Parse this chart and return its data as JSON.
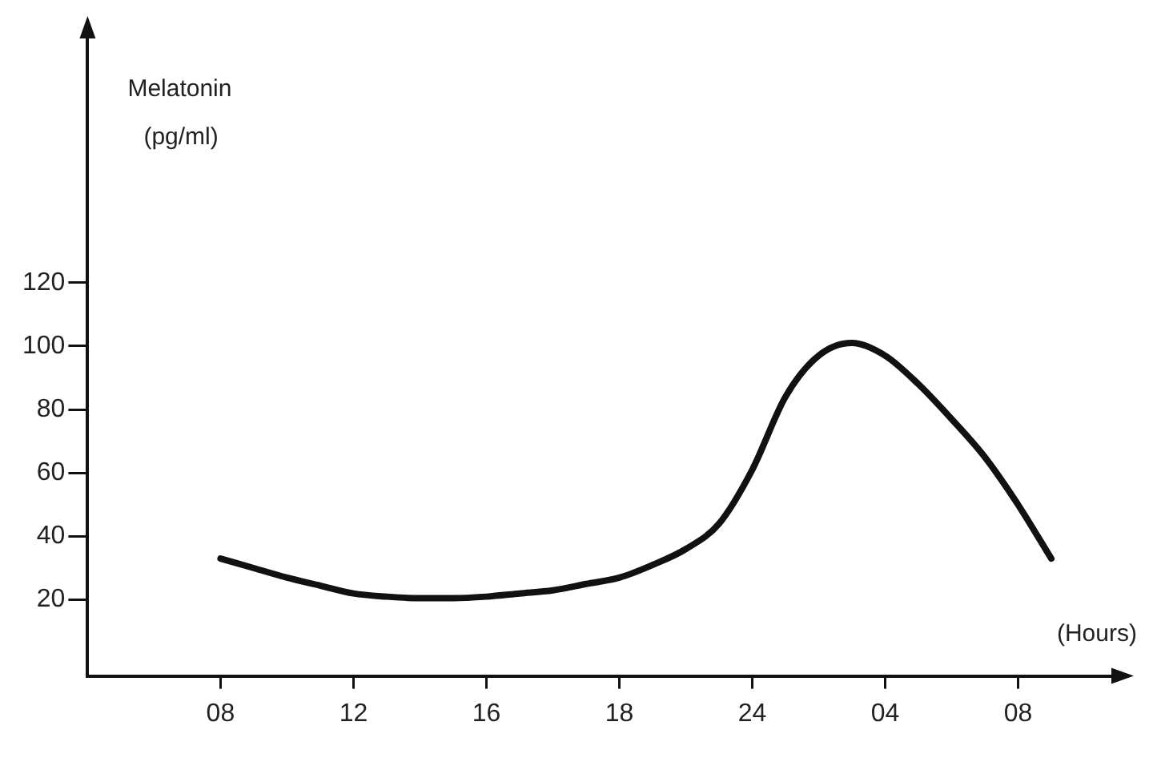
{
  "chart_data": {
    "type": "line",
    "xlabel": "(Hours)",
    "ylabel": "Melatonin (pg/ml)",
    "categories": [
      null,
      null,
      null,
      null,
      "08",
      null,
      null,
      null,
      "12",
      null,
      null,
      null,
      "16",
      null,
      null,
      null,
      "18",
      null,
      null,
      null,
      "24",
      null,
      null,
      null,
      "04",
      null,
      null,
      null,
      "08",
      null,
      null,
      null
    ],
    "series": [
      {
        "color": "#111111",
        "values": [
          null,
          null,
          null,
          null,
          33,
          30,
          27,
          24.5,
          22,
          21,
          20.5,
          20.5,
          21,
          22,
          23,
          25,
          27,
          31,
          36,
          44,
          61,
          84,
          97,
          101,
          97,
          88,
          77,
          65,
          50,
          33,
          null,
          null
        ]
      }
    ],
    "ylim": [
      -4,
      199
    ],
    "yticks": [
      20,
      40,
      60,
      80,
      100,
      120
    ],
    "grid": false,
    "legend": false,
    "marker": "none",
    "line_style": "solid"
  }
}
